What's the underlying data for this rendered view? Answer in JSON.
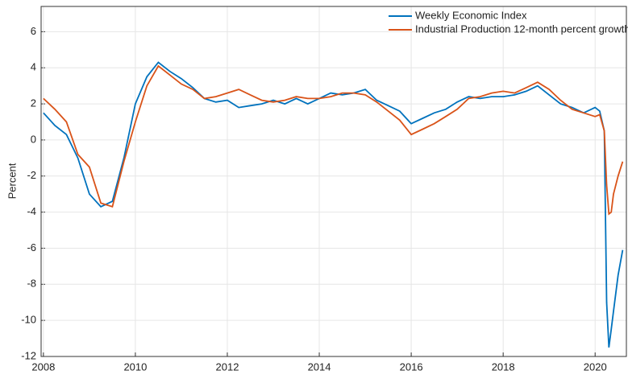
{
  "chart_data": {
    "type": "line",
    "y_label": "Percent",
    "x": [
      2008.0,
      2008.25,
      2008.5,
      2008.75,
      2009.0,
      2009.25,
      2009.5,
      2009.75,
      2010.0,
      2010.25,
      2010.5,
      2010.75,
      2011.0,
      2011.25,
      2011.5,
      2011.75,
      2012.0,
      2012.25,
      2012.5,
      2012.75,
      2013.0,
      2013.25,
      2013.5,
      2013.75,
      2014.0,
      2014.25,
      2014.5,
      2014.75,
      2015.0,
      2015.25,
      2015.5,
      2015.75,
      2016.0,
      2016.25,
      2016.5,
      2016.75,
      2017.0,
      2017.25,
      2017.5,
      2017.75,
      2018.0,
      2018.25,
      2018.5,
      2018.75,
      2019.0,
      2019.25,
      2019.5,
      2019.75,
      2020.0,
      2020.1,
      2020.2,
      2020.25,
      2020.3,
      2020.35,
      2020.4,
      2020.5,
      2020.6
    ],
    "series": [
      {
        "name": "Weekly Economic Index",
        "color": "#0072bd",
        "values": [
          1.5,
          0.8,
          0.3,
          -1.0,
          -3.0,
          -3.7,
          -3.4,
          -1.0,
          2.0,
          3.5,
          4.3,
          3.8,
          3.4,
          2.9,
          2.3,
          2.1,
          2.2,
          1.8,
          1.9,
          2.0,
          2.2,
          2.0,
          2.3,
          2.0,
          2.3,
          2.6,
          2.5,
          2.6,
          2.8,
          2.2,
          1.9,
          1.6,
          0.9,
          1.2,
          1.5,
          1.7,
          2.1,
          2.4,
          2.3,
          2.4,
          2.4,
          2.5,
          2.7,
          3.0,
          2.5,
          2.0,
          1.8,
          1.5,
          1.8,
          1.6,
          0.5,
          -9.0,
          -11.5,
          -10.5,
          -9.5,
          -7.5,
          -6.1
        ]
      },
      {
        "name": "Industrial Production 12-month percent growth",
        "color": "#d95319",
        "values": [
          2.3,
          1.7,
          1.0,
          -0.8,
          -1.5,
          -3.5,
          -3.7,
          -1.2,
          1.0,
          3.0,
          4.1,
          3.6,
          3.1,
          2.8,
          2.3,
          2.4,
          2.6,
          2.8,
          2.5,
          2.2,
          2.1,
          2.2,
          2.4,
          2.3,
          2.3,
          2.4,
          2.6,
          2.6,
          2.5,
          2.1,
          1.6,
          1.1,
          0.3,
          0.6,
          0.9,
          1.3,
          1.7,
          2.3,
          2.4,
          2.6,
          2.7,
          2.6,
          2.9,
          3.2,
          2.8,
          2.2,
          1.7,
          1.5,
          1.3,
          1.4,
          0.5,
          -2.5,
          -4.1,
          -4.0,
          -3.0,
          -2.0,
          -1.2
        ]
      }
    ],
    "xlim": [
      2007.95,
      2020.68
    ],
    "xticks": [
      2008,
      2010,
      2012,
      2014,
      2016,
      2018,
      2020
    ],
    "ylim": [
      -12,
      7.4
    ],
    "yticks": [
      -12,
      -10,
      -8,
      -6,
      -4,
      -2,
      0,
      2,
      4,
      6
    ],
    "grid": true,
    "legend": "top-right"
  }
}
